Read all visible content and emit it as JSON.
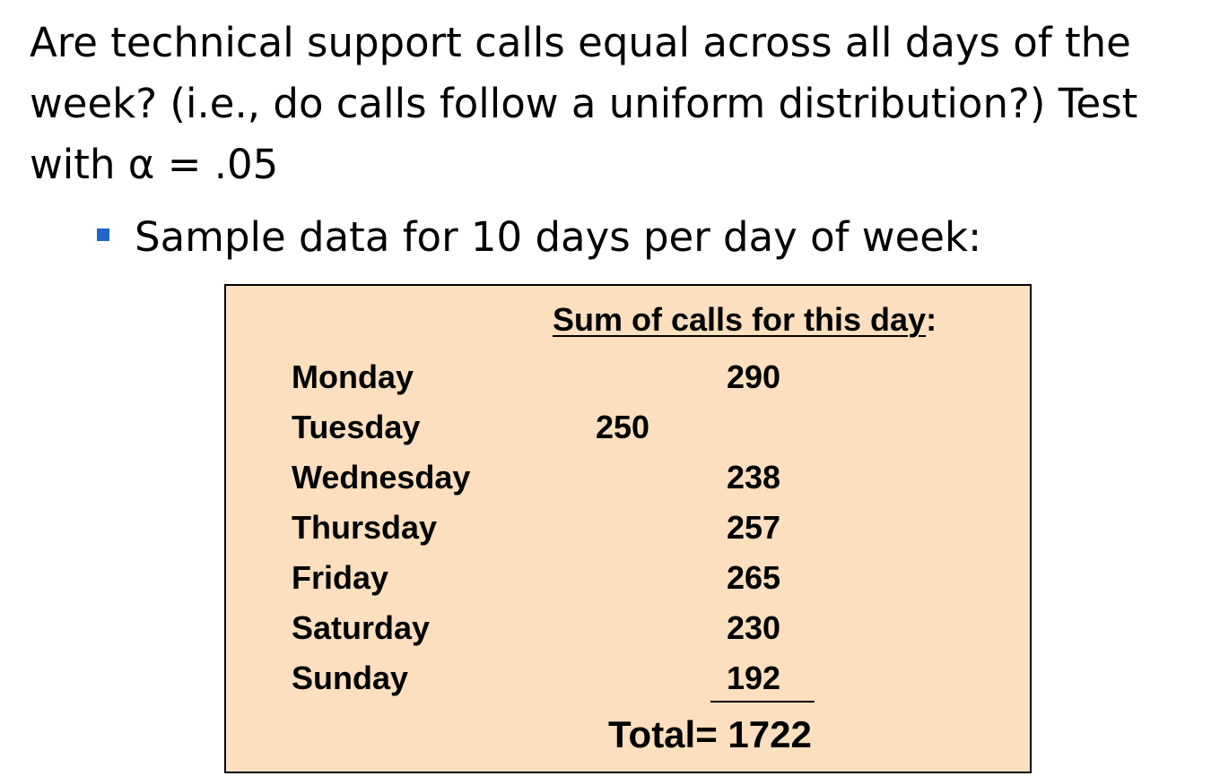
{
  "question": "Are technical support calls equal across all days of the week? (i.e., do calls follow a uniform distribution?) Test with  α = .05",
  "bullet": "Sample data for 10 days per day of week:",
  "table": {
    "header_underlined": "Sum of calls for this day",
    "header_suffix": ":",
    "rows": [
      {
        "day": "Monday",
        "calls": "290"
      },
      {
        "day": "Tuesday",
        "calls": "250"
      },
      {
        "day": "Wednesday",
        "calls": "238"
      },
      {
        "day": "Thursday",
        "calls": "257"
      },
      {
        "day": "Friday",
        "calls": "265"
      },
      {
        "day": "Saturday",
        "calls": "230"
      },
      {
        "day": "Sunday",
        "calls": "192"
      }
    ],
    "total": "Total= 1722"
  },
  "colors": {
    "box_background": "#fcdfbf",
    "bullet": "#1f66c8"
  }
}
